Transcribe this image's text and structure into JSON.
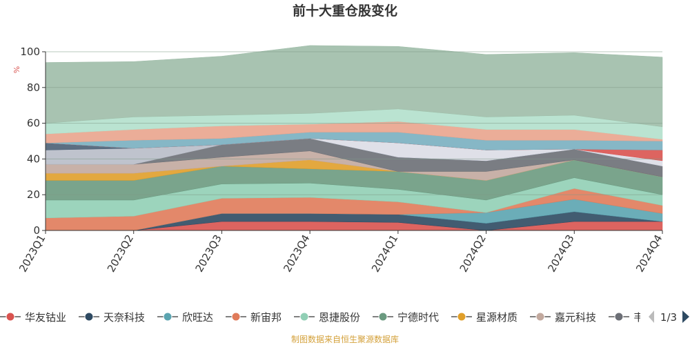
{
  "chart_data": {
    "type": "area",
    "title": "前十大重仓股变化",
    "ylabel": "%",
    "ylim": [
      0,
      100
    ],
    "yticks": [
      0,
      20,
      40,
      60,
      80,
      100
    ],
    "categories": [
      "2023Q1",
      "2023Q2",
      "2023Q3",
      "2023Q4",
      "2024Q1",
      "2024Q2",
      "2024Q3",
      "2024Q4"
    ],
    "series": [
      {
        "name": "华友钴业",
        "color": "#d9534f",
        "values": [
          0,
          0,
          5,
          5,
          4.5,
          0,
          5,
          5
        ]
      },
      {
        "name": "天奈科技",
        "color": "#2e4a62",
        "values": [
          0,
          0,
          4.5,
          4.5,
          4.5,
          4,
          5.5,
          0
        ]
      },
      {
        "name": "欣旺达",
        "color": "#5ba4b0",
        "values": [
          0,
          0,
          0,
          0,
          0,
          6,
          7,
          4.5
        ]
      },
      {
        "name": "新宙邦",
        "color": "#e07b5a",
        "values": [
          7,
          8,
          8.5,
          9,
          7,
          0,
          6,
          4.5
        ]
      },
      {
        "name": "恩捷股份",
        "color": "#91cfb5",
        "values": [
          10,
          9,
          8,
          8,
          7,
          7,
          6,
          6
        ]
      },
      {
        "name": "宁德时代",
        "color": "#6b9a80",
        "values": [
          11,
          11,
          10,
          8,
          10,
          11,
          10,
          10
        ]
      },
      {
        "name": "星源材质",
        "color": "#e09f2a",
        "values": [
          4,
          4,
          0,
          5,
          0,
          0,
          0,
          0
        ]
      },
      {
        "name": "嘉元科技",
        "color": "#c2a99e",
        "values": [
          5,
          5,
          5,
          5,
          0,
          5,
          0,
          0
        ]
      },
      {
        "name": "韦尔股份",
        "color": "#6c6f76",
        "values": [
          0,
          0,
          7,
          7,
          8,
          6,
          6,
          6
        ]
      },
      {
        "name": "",
        "color": "#b8bcc8",
        "values": [
          8,
          9,
          0,
          0,
          0,
          0,
          0,
          0
        ]
      },
      {
        "name": "",
        "color": "#4a5f74",
        "values": [
          4,
          0,
          0,
          0,
          0,
          0,
          0,
          0
        ]
      },
      {
        "name": "",
        "color": "#dcdde6",
        "values": [
          0,
          0,
          0,
          0,
          8,
          6,
          0,
          3
        ]
      },
      {
        "name": "",
        "color": "#d9534f",
        "values": [
          0,
          0,
          0,
          0,
          0,
          0,
          0,
          6
        ]
      },
      {
        "name": "",
        "color": "#79afc0",
        "values": [
          0,
          4.5,
          3.5,
          3.5,
          6,
          5.5,
          5,
          5
        ]
      },
      {
        "name": "",
        "color": "#e9a48d",
        "values": [
          5,
          6,
          7,
          4.5,
          6,
          6,
          6,
          1
        ]
      },
      {
        "name": "",
        "color": "#b3e0cc",
        "values": [
          6,
          7,
          6,
          6,
          7,
          7,
          8,
          7
        ]
      },
      {
        "name": "",
        "color": "#9ebda8",
        "values": [
          34,
          31,
          33,
          38,
          35,
          35,
          35,
          39
        ]
      }
    ],
    "legend_position": "bottom",
    "legend_page": "1/3"
  },
  "footer": "制图数据来自恒生聚源数据库"
}
